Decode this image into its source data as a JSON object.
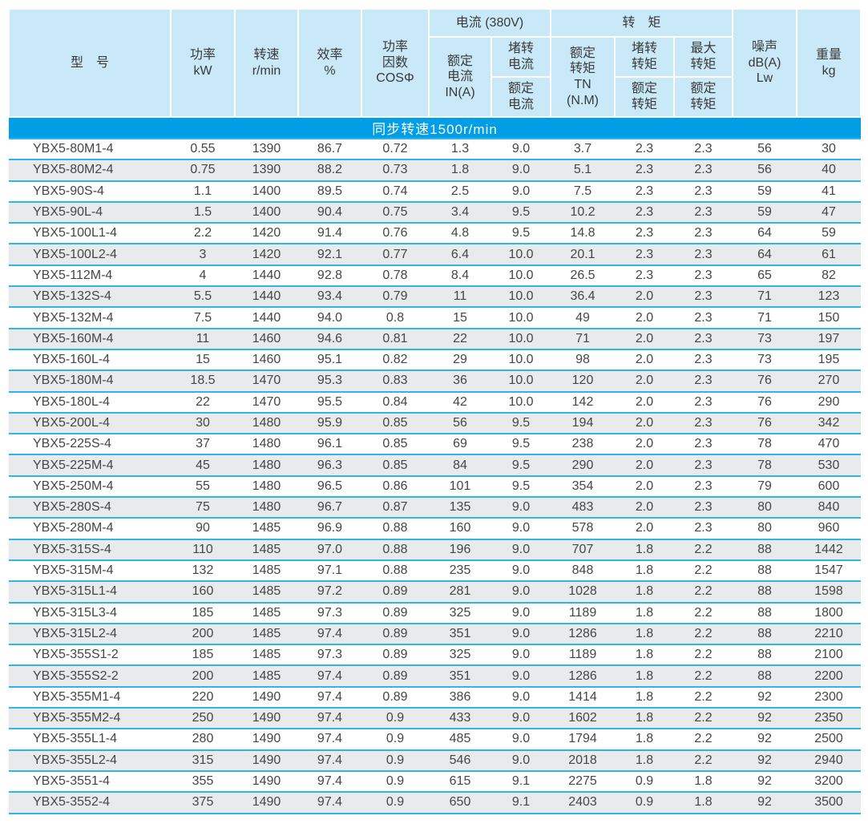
{
  "colors": {
    "header_bg": "#c9e8f8",
    "band_bg": "#009ee7",
    "band_text": "#ffffff",
    "stripe_bg": "#e8eaec",
    "row_separator": "#2eb6ea",
    "text": "#464646"
  },
  "table": {
    "band_label": "同步转速1500r/min",
    "header": {
      "model": "型　号",
      "power": "功率\nkW",
      "speed": "转速\nr/min",
      "efficiency": "效率\n%",
      "power_factor": "功率\n因数\nCOSΦ",
      "current_group": "电流 (380V)",
      "rated_current": "额定\n电流\nIN(A)",
      "locked_current_num": "堵转\n电流",
      "locked_current_den": "额定\n电流",
      "torque_group": "转　矩",
      "rated_torque": "额定\n转矩\nTN\n(N.M)",
      "locked_torque_num": "堵转\n转矩",
      "locked_torque_den": "额定\n转矩",
      "max_torque_num": "最大\n转矩",
      "max_torque_den": "额定\n转矩",
      "noise": "噪声\ndB(A)\nLw",
      "weight": "重量\nkg"
    },
    "rows": [
      [
        "YBX5-80M1-4",
        "0.55",
        "1390",
        "86.7",
        "0.72",
        "1.3",
        "9.0",
        "3.7",
        "2.3",
        "2.3",
        "56",
        "30"
      ],
      [
        "YBX5-80M2-4",
        "0.75",
        "1390",
        "88.2",
        "0.73",
        "1.8",
        "9.0",
        "5.1",
        "2.3",
        "2.3",
        "56",
        "40"
      ],
      [
        "YBX5-90S-4",
        "1.1",
        "1400",
        "89.5",
        "0.74",
        "2.5",
        "9.0",
        "7.5",
        "2.3",
        "2.3",
        "59",
        "41"
      ],
      [
        "YBX5-90L-4",
        "1.5",
        "1400",
        "90.4",
        "0.75",
        "3.4",
        "9.5",
        "10.2",
        "2.3",
        "2.3",
        "59",
        "47"
      ],
      [
        "YBX5-100L1-4",
        "2.2",
        "1420",
        "91.4",
        "0.76",
        "4.8",
        "9.5",
        "14.8",
        "2.3",
        "2.3",
        "64",
        "59"
      ],
      [
        "YBX5-100L2-4",
        "3",
        "1420",
        "92.1",
        "0.77",
        "6.4",
        "10.0",
        "20.1",
        "2.3",
        "2.3",
        "64",
        "61"
      ],
      [
        "YBX5-112M-4",
        "4",
        "1440",
        "92.8",
        "0.78",
        "8.4",
        "10.0",
        "26.5",
        "2.3",
        "2.3",
        "65",
        "82"
      ],
      [
        "YBX5-132S-4",
        "5.5",
        "1440",
        "93.4",
        "0.79",
        "11",
        "10.0",
        "36.4",
        "2.0",
        "2.3",
        "71",
        "123"
      ],
      [
        "YBX5-132M-4",
        "7.5",
        "1440",
        "94.0",
        "0.8",
        "15",
        "10.0",
        "49",
        "2.0",
        "2.3",
        "71",
        "150"
      ],
      [
        "YBX5-160M-4",
        "11",
        "1460",
        "94.6",
        "0.81",
        "22",
        "10.0",
        "71",
        "2.0",
        "2.3",
        "73",
        "197"
      ],
      [
        "YBX5-160L-4",
        "15",
        "1460",
        "95.1",
        "0.82",
        "29",
        "10.0",
        "98",
        "2.0",
        "2.3",
        "73",
        "195"
      ],
      [
        "YBX5-180M-4",
        "18.5",
        "1470",
        "95.3",
        "0.83",
        "36",
        "10.0",
        "120",
        "2.0",
        "2.3",
        "76",
        "270"
      ],
      [
        "YBX5-180L-4",
        "22",
        "1470",
        "95.5",
        "0.84",
        "42",
        "10.0",
        "142",
        "2.0",
        "2.3",
        "76",
        "290"
      ],
      [
        "YBX5-200L-4",
        "30",
        "1480",
        "95.9",
        "0.85",
        "56",
        "9.5",
        "194",
        "2.0",
        "2.3",
        "76",
        "342"
      ],
      [
        "YBX5-225S-4",
        "37",
        "1480",
        "96.1",
        "0.85",
        "69",
        "9.5",
        "238",
        "2.0",
        "2.3",
        "78",
        "470"
      ],
      [
        "YBX5-225M-4",
        "45",
        "1480",
        "96.3",
        "0.85",
        "84",
        "9.5",
        "290",
        "2.0",
        "2.3",
        "78",
        "530"
      ],
      [
        "YBX5-250M-4",
        "55",
        "1480",
        "96.5",
        "0.86",
        "101",
        "9.5",
        "354",
        "2.0",
        "2.3",
        "79",
        "600"
      ],
      [
        "YBX5-280S-4",
        "75",
        "1480",
        "96.7",
        "0.87",
        "135",
        "9.0",
        "483",
        "2.0",
        "2.3",
        "80",
        "840"
      ],
      [
        "YBX5-280M-4",
        "90",
        "1485",
        "96.9",
        "0.88",
        "160",
        "9.0",
        "578",
        "2.0",
        "2.3",
        "80",
        "960"
      ],
      [
        "YBX5-315S-4",
        "110",
        "1485",
        "97.0",
        "0.88",
        "196",
        "9.0",
        "707",
        "1.8",
        "2.2",
        "88",
        "1442"
      ],
      [
        "YBX5-315M-4",
        "132",
        "1485",
        "97.1",
        "0.88",
        "235",
        "9.0",
        "848",
        "1.8",
        "2.2",
        "88",
        "1547"
      ],
      [
        "YBX5-315L1-4",
        "160",
        "1485",
        "97.2",
        "0.89",
        "281",
        "9.0",
        "1028",
        "1.8",
        "2.2",
        "88",
        "1598"
      ],
      [
        "YBX5-315L3-4",
        "185",
        "1485",
        "97.3",
        "0.89",
        "325",
        "9.0",
        "1189",
        "1.8",
        "2.2",
        "88",
        "1800"
      ],
      [
        "YBX5-315L2-4",
        "200",
        "1485",
        "97.4",
        "0.89",
        "351",
        "9.0",
        "1286",
        "1.8",
        "2.2",
        "88",
        "2210"
      ],
      [
        "YBX5-355S1-2",
        "185",
        "1485",
        "97.3",
        "0.89",
        "325",
        "9.0",
        "1189",
        "1.8",
        "2.2",
        "88",
        "2100"
      ],
      [
        "YBX5-355S2-2",
        "200",
        "1485",
        "97.4",
        "0.89",
        "351",
        "9.0",
        "1286",
        "1.8",
        "2.2",
        "88",
        "2200"
      ],
      [
        "YBX5-355M1-4",
        "220",
        "1490",
        "97.4",
        "0.89",
        "386",
        "9.0",
        "1414",
        "1.8",
        "2.2",
        "92",
        "2300"
      ],
      [
        "YBX5-355M2-4",
        "250",
        "1490",
        "97.4",
        "0.9",
        "433",
        "9.0",
        "1602",
        "1.8",
        "2.2",
        "92",
        "2350"
      ],
      [
        "YBX5-355L1-4",
        "280",
        "1490",
        "97.4",
        "0.9",
        "485",
        "9.0",
        "1794",
        "1.8",
        "2.2",
        "92",
        "2500"
      ],
      [
        "YBX5-355L2-4",
        "315",
        "1490",
        "97.4",
        "0.9",
        "546",
        "9.0",
        "2018",
        "1.8",
        "2.2",
        "92",
        "2940"
      ],
      [
        "YBX5-3551-4",
        "355",
        "1490",
        "97.4",
        "0.9",
        "615",
        "9.1",
        "2275",
        "0.9",
        "1.8",
        "92",
        "3200"
      ],
      [
        "YBX5-3552-4",
        "375",
        "1490",
        "97.4",
        "0.9",
        "650",
        "9.1",
        "2403",
        "0.9",
        "1.8",
        "92",
        "3500"
      ]
    ]
  }
}
